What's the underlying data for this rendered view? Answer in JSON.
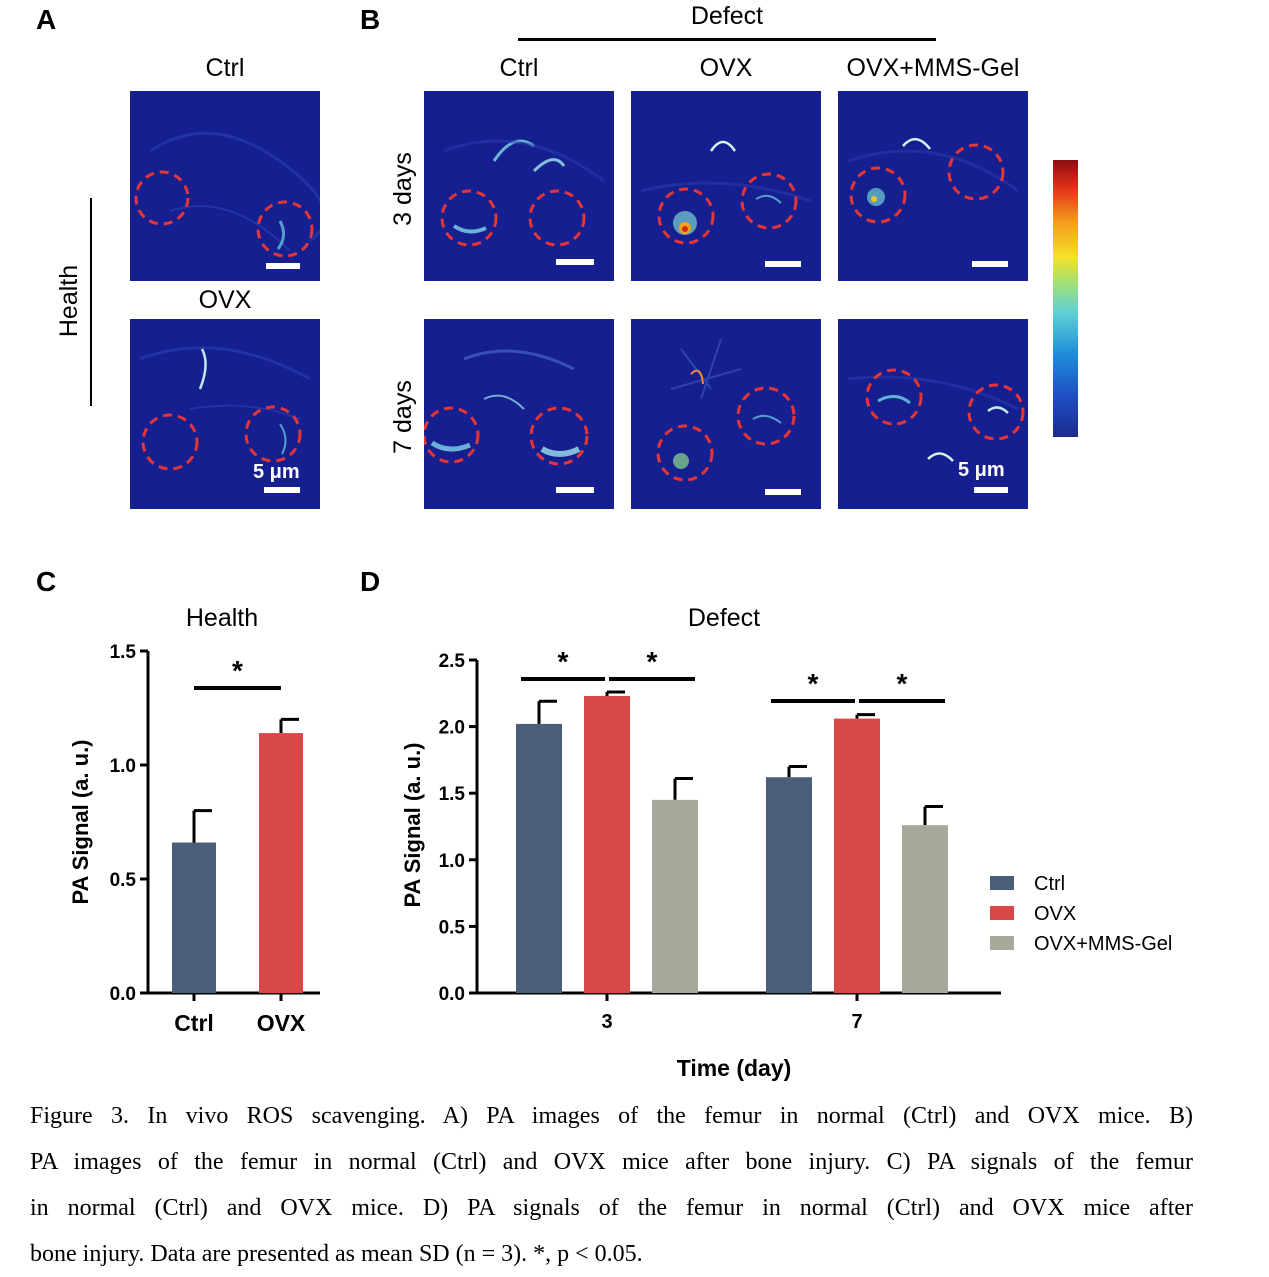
{
  "figure": {
    "labels": {
      "A": "A",
      "B": "B",
      "C": "C",
      "D": "D"
    },
    "panel_a": {
      "side_label": "Health",
      "titles": [
        "Ctrl",
        "OVX"
      ],
      "scale_text": "5 μm"
    },
    "panel_b": {
      "group_label": "Defect",
      "column_titles": [
        "Ctrl",
        "OVX",
        "OVX+MMS-Gel"
      ],
      "row_labels": [
        "3 days",
        "7 days"
      ],
      "scale_text": "5 μm"
    },
    "colors": {
      "ctrl": "#4a5e79",
      "ovx": "#d84848",
      "gel": "#a7a99d",
      "pa_bg": "#151f8f",
      "circle": "#e53535"
    }
  },
  "chart_data": [
    {
      "type": "bar",
      "panel": "C",
      "title": "Health",
      "ylabel": "PA Signal (a. u.)",
      "xlabel": "",
      "categories": [
        "Ctrl",
        "OVX"
      ],
      "values": [
        0.66,
        1.14
      ],
      "errors": [
        0.14,
        0.06
      ],
      "ylim": [
        0,
        1.5
      ],
      "yticks": [
        "0.0",
        "0.5",
        "1.0",
        "1.5"
      ],
      "significance": [
        {
          "from": 0,
          "to": 1,
          "label": "*"
        }
      ]
    },
    {
      "type": "bar",
      "panel": "D",
      "title": "Defect",
      "ylabel": "PA Signal (a. u.)",
      "xlabel": "Time (day)",
      "categories": [
        "3",
        "7"
      ],
      "series": [
        {
          "name": "Ctrl",
          "values": [
            2.02,
            1.62
          ],
          "errors": [
            0.17,
            0.08
          ]
        },
        {
          "name": "OVX",
          "values": [
            2.23,
            2.06
          ],
          "errors": [
            0.03,
            0.03
          ]
        },
        {
          "name": "OVX+MMS-Gel",
          "values": [
            1.45,
            1.26
          ],
          "errors": [
            0.16,
            0.14
          ]
        }
      ],
      "ylim": [
        0,
        2.5
      ],
      "yticks": [
        "0.0",
        "0.5",
        "1.0",
        "1.5",
        "2.0",
        "2.5"
      ],
      "legend": "right",
      "significance": [
        {
          "group": 0,
          "from": 0,
          "to": 1,
          "label": "*"
        },
        {
          "group": 0,
          "from": 1,
          "to": 2,
          "label": "*"
        },
        {
          "group": 1,
          "from": 0,
          "to": 1,
          "label": "*"
        },
        {
          "group": 1,
          "from": 1,
          "to": 2,
          "label": "*"
        }
      ]
    }
  ],
  "caption": {
    "lines": [
      "Figure 3. In vivo ROS scavenging. A) PA images of the femur in normal (Ctrl) and OVX mice. B)",
      "PA images of the femur in normal (Ctrl) and OVX mice after bone injury. C) PA signals of the femur",
      "in normal (Ctrl) and OVX mice. D) PA signals of the femur in normal (Ctrl) and OVX mice after",
      "bone injury. Data are presented as mean SD (n = 3). *, p < 0.05."
    ]
  }
}
